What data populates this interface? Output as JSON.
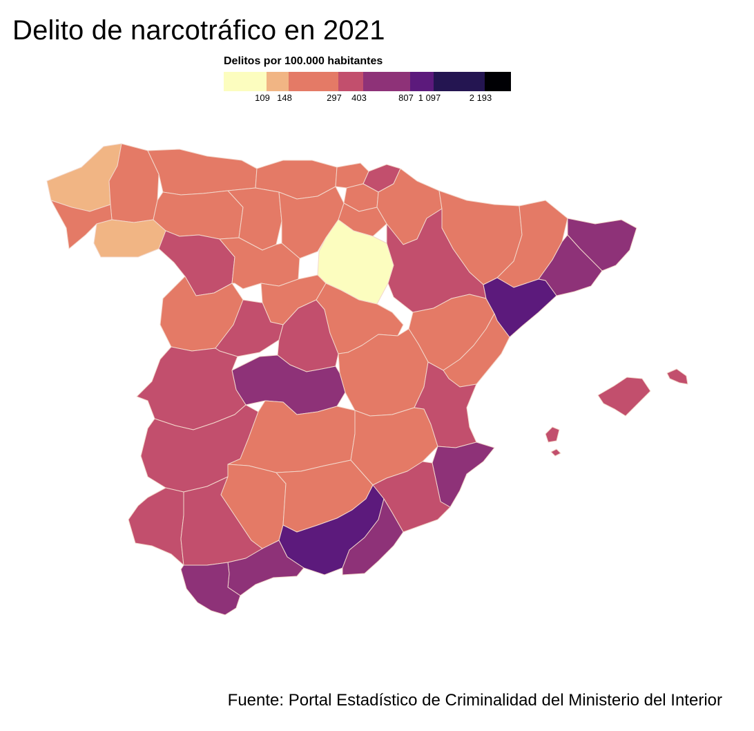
{
  "title": "Delito de narcotráfico en 2021",
  "legend": {
    "title": "Delitos por 100.000 habitantes",
    "bins": [
      {
        "color": "#fcfdbf"
      },
      {
        "color": "#f1b584"
      },
      {
        "color": "#e47a66"
      },
      {
        "color": "#c24f6d"
      },
      {
        "color": "#8e3278"
      },
      {
        "color": "#5c1a7c"
      },
      {
        "color": "#241551"
      },
      {
        "color": "#000004"
      }
    ],
    "ticks": [
      "109",
      "148",
      "297",
      "403",
      "807",
      "1 097",
      "2 193"
    ]
  },
  "colors": {
    "bin1": "#fcfdbf",
    "bin2": "#f1b584",
    "bin3": "#e47a66",
    "bin4": "#c24f6d",
    "bin5": "#8e3278",
    "bin6": "#5c1a7c",
    "border": "#f3d8cc"
  },
  "source": "Fuente: Portal Estadístico de Criminalidad del Ministerio del Interior"
}
